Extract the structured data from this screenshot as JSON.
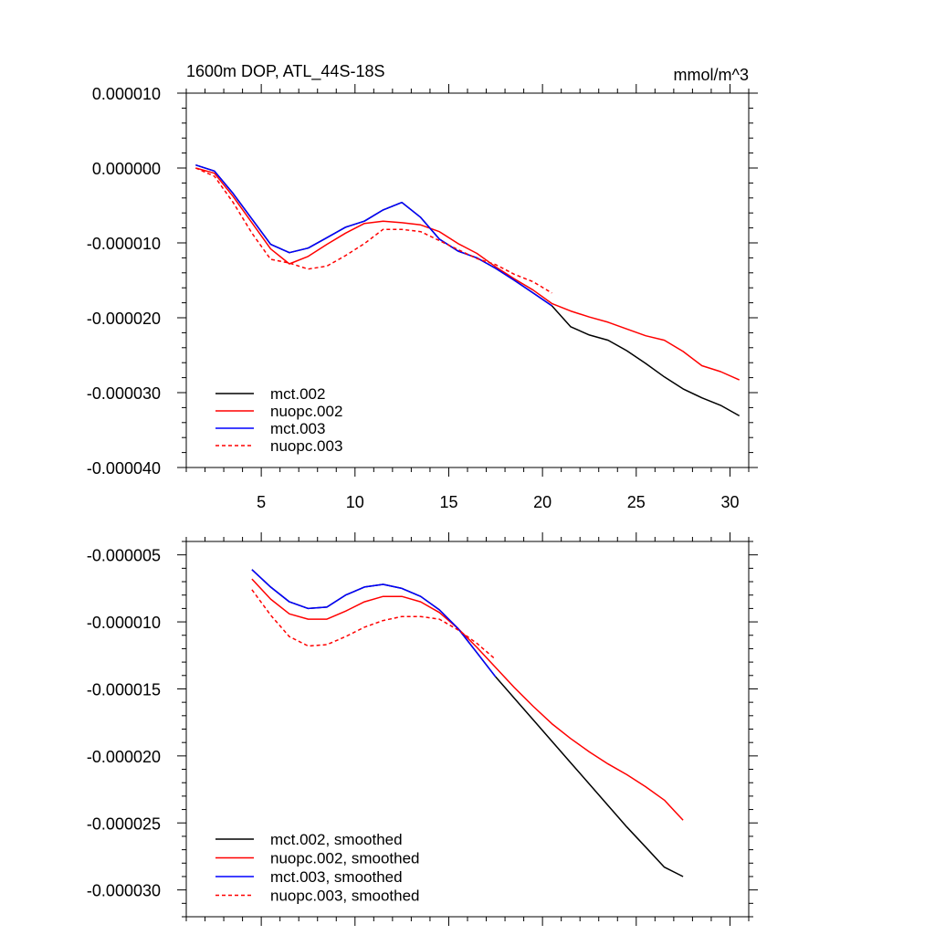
{
  "chart_data": [
    {
      "type": "line",
      "title": "1600m DOP, ATL_44S-18S",
      "units": "mmol/m^3",
      "xlim": [
        1,
        31
      ],
      "ylim": [
        -4e-05,
        1e-05
      ],
      "xticks": [
        5,
        10,
        15,
        20,
        25,
        30
      ],
      "xtick_labels": [
        "5",
        "10",
        "15",
        "20",
        "25",
        "30"
      ],
      "yticks": [
        1e-05,
        0.0,
        -1e-05,
        -2e-05,
        -3e-05,
        -4e-05
      ],
      "ytick_labels": [
        "0.000010",
        "0.000000",
        "-0.000010",
        "-0.000020",
        "-0.000030",
        "-0.000040"
      ],
      "legend_position": "bottom-left",
      "series": [
        {
          "name": "mct.002",
          "color": "#000000",
          "dash": "solid",
          "x": [
            1.5,
            2.5,
            3.5,
            4.5,
            5.5,
            6.5,
            7.5,
            8.5,
            9.5,
            10.5,
            11.5,
            12.5,
            13.5,
            14.5,
            15.5,
            16.5,
            17.5,
            18.5,
            19.5,
            20.5,
            21.5,
            22.5,
            23.5,
            24.5,
            25.5,
            26.5,
            27.5,
            28.5,
            29.5,
            30.5
          ],
          "values": [
            4e-07,
            -4e-07,
            -3.4e-06,
            -6.8e-06,
            -1.02e-05,
            -1.13e-05,
            -1.07e-05,
            -9.3e-06,
            -7.9e-06,
            -7.1e-06,
            -5.6e-06,
            -4.6e-06,
            -6.6e-06,
            -9.5e-06,
            -1.11e-05,
            -1.2e-05,
            -1.34e-05,
            -1.5e-05,
            -1.67e-05,
            -1.84e-05,
            -2.12e-05,
            -2.23e-05,
            -2.3e-05,
            -2.44e-05,
            -2.61e-05,
            -2.79e-05,
            -2.95e-05,
            -3.07e-05,
            -3.17e-05,
            -3.31e-05
          ]
        },
        {
          "name": "nuopc.002",
          "color": "#ff0000",
          "dash": "solid",
          "x": [
            1.5,
            2.5,
            3.5,
            4.5,
            5.5,
            6.5,
            7.5,
            8.5,
            9.5,
            10.5,
            11.5,
            12.5,
            13.5,
            14.5,
            15.5,
            16.5,
            17.5,
            18.5,
            19.5,
            20.5,
            21.5,
            22.5,
            23.5,
            24.5,
            25.5,
            26.5,
            27.5,
            28.5,
            29.5,
            30.5
          ],
          "values": [
            0.0,
            -7e-07,
            -3.8e-06,
            -7.3e-06,
            -1.08e-05,
            -1.28e-05,
            -1.18e-05,
            -1.02e-05,
            -8.7e-06,
            -7.4e-06,
            -7.1e-06,
            -7.3e-06,
            -7.6e-06,
            -8.5e-06,
            -1.01e-05,
            -1.14e-05,
            -1.32e-05,
            -1.48e-05,
            -1.63e-05,
            -1.81e-05,
            -1.91e-05,
            -1.99e-05,
            -2.06e-05,
            -2.15e-05,
            -2.24e-05,
            -2.3e-05,
            -2.45e-05,
            -2.64e-05,
            -2.72e-05,
            -2.83e-05
          ]
        },
        {
          "name": "mct.003",
          "color": "#0000ff",
          "dash": "solid",
          "x": [
            1.5,
            2.5,
            3.5,
            4.5,
            5.5,
            6.5,
            7.5,
            8.5,
            9.5,
            10.5,
            11.5,
            12.5,
            13.5,
            14.5,
            15.5,
            16.5,
            17.5,
            18.5,
            19.5,
            20.5
          ],
          "values": [
            4e-07,
            -4e-07,
            -3.4e-06,
            -6.8e-06,
            -1.02e-05,
            -1.13e-05,
            -1.07e-05,
            -9.3e-06,
            -7.9e-06,
            -7.1e-06,
            -5.6e-06,
            -4.6e-06,
            -6.6e-06,
            -9.5e-06,
            -1.11e-05,
            -1.2e-05,
            -1.34e-05,
            -1.5e-05,
            -1.67e-05,
            -1.84e-05
          ]
        },
        {
          "name": "nuopc.003",
          "color": "#ff0000",
          "dash": "dashed",
          "x": [
            1.5,
            2.5,
            3.5,
            4.5,
            5.5,
            6.5,
            7.5,
            8.5,
            9.5,
            10.5,
            11.5,
            12.5,
            13.5,
            14.5,
            15.5,
            16.5,
            17.5,
            18.5,
            19.5,
            20.5
          ],
          "values": [
            0.0,
            -1.1e-06,
            -4.6e-06,
            -8.7e-06,
            -1.22e-05,
            -1.27e-05,
            -1.35e-05,
            -1.31e-05,
            -1.17e-05,
            -1.01e-05,
            -8.2e-06,
            -8.2e-06,
            -8.5e-06,
            -9.7e-06,
            -1.09e-05,
            -1.21e-05,
            -1.29e-05,
            -1.42e-05,
            -1.52e-05,
            -1.67e-05
          ]
        }
      ]
    },
    {
      "type": "line",
      "title": "",
      "xlim": [
        1,
        31
      ],
      "ylim": [
        -3.2e-05,
        -4e-06
      ],
      "xticks": [
        5,
        10,
        15,
        20,
        25,
        30
      ],
      "xtick_labels": [],
      "yticks": [
        -5e-06,
        -1e-05,
        -1.5e-05,
        -2e-05,
        -2.5e-05,
        -3e-05
      ],
      "ytick_labels": [
        "-0.000005",
        "-0.000010",
        "-0.000015",
        "-0.000020",
        "-0.000025",
        "-0.000030"
      ],
      "legend_position": "bottom-left",
      "series": [
        {
          "name": "mct.002, smoothed",
          "color": "#000000",
          "dash": "solid",
          "x": [
            4.5,
            5.5,
            6.5,
            7.5,
            8.5,
            9.5,
            10.5,
            11.5,
            12.5,
            13.5,
            14.5,
            15.5,
            16.5,
            17.5,
            18.5,
            19.5,
            20.5,
            21.5,
            22.5,
            23.5,
            24.5,
            25.5,
            26.5,
            27.5
          ],
          "values": [
            -6.1e-06,
            -7.4e-06,
            -8.5e-06,
            -9e-06,
            -8.9e-06,
            -8e-06,
            -7.4e-06,
            -7.2e-06,
            -7.5e-06,
            -8.1e-06,
            -9.1e-06,
            -1.05e-05,
            -1.23e-05,
            -1.41e-05,
            -1.57e-05,
            -1.73e-05,
            -1.89e-05,
            -2.05e-05,
            -2.21e-05,
            -2.37e-05,
            -2.53e-05,
            -2.68e-05,
            -2.83e-05,
            -2.9e-05
          ]
        },
        {
          "name": "nuopc.002, smoothed",
          "color": "#ff0000",
          "dash": "solid",
          "x": [
            4.5,
            5.5,
            6.5,
            7.5,
            8.5,
            9.5,
            10.5,
            11.5,
            12.5,
            13.5,
            14.5,
            15.5,
            16.5,
            17.5,
            18.5,
            19.5,
            20.5,
            21.5,
            22.5,
            23.5,
            24.5,
            25.5,
            26.5,
            27.5
          ],
          "values": [
            -6.8e-06,
            -8.3e-06,
            -9.4e-06,
            -9.8e-06,
            -9.8e-06,
            -9.2e-06,
            -8.5e-06,
            -8.1e-06,
            -8.1e-06,
            -8.5e-06,
            -9.3e-06,
            -1.05e-05,
            -1.19e-05,
            -1.34e-05,
            -1.49e-05,
            -1.63e-05,
            -1.76e-05,
            -1.87e-05,
            -1.97e-05,
            -2.06e-05,
            -2.14e-05,
            -2.23e-05,
            -2.33e-05,
            -2.48e-05
          ]
        },
        {
          "name": "mct.003, smoothed",
          "color": "#0000ff",
          "dash": "solid",
          "x": [
            4.5,
            5.5,
            6.5,
            7.5,
            8.5,
            9.5,
            10.5,
            11.5,
            12.5,
            13.5,
            14.5,
            15.5,
            16.5,
            17.5
          ],
          "values": [
            -6.1e-06,
            -7.4e-06,
            -8.5e-06,
            -9e-06,
            -8.9e-06,
            -8e-06,
            -7.4e-06,
            -7.2e-06,
            -7.5e-06,
            -8.1e-06,
            -9.1e-06,
            -1.05e-05,
            -1.23e-05,
            -1.41e-05
          ]
        },
        {
          "name": "nuopc.003, smoothed",
          "color": "#ff0000",
          "dash": "dashed",
          "x": [
            4.5,
            5.5,
            6.5,
            7.5,
            8.5,
            9.5,
            10.5,
            11.5,
            12.5,
            13.5,
            14.5,
            15.5,
            16.5,
            17.5
          ],
          "values": [
            -7.6e-06,
            -9.5e-06,
            -1.11e-05,
            -1.18e-05,
            -1.17e-05,
            -1.11e-05,
            -1.04e-05,
            -9.9e-06,
            -9.6e-06,
            -9.6e-06,
            -9.8e-06,
            -1.06e-05,
            -1.16e-05,
            -1.28e-05
          ]
        }
      ]
    }
  ]
}
